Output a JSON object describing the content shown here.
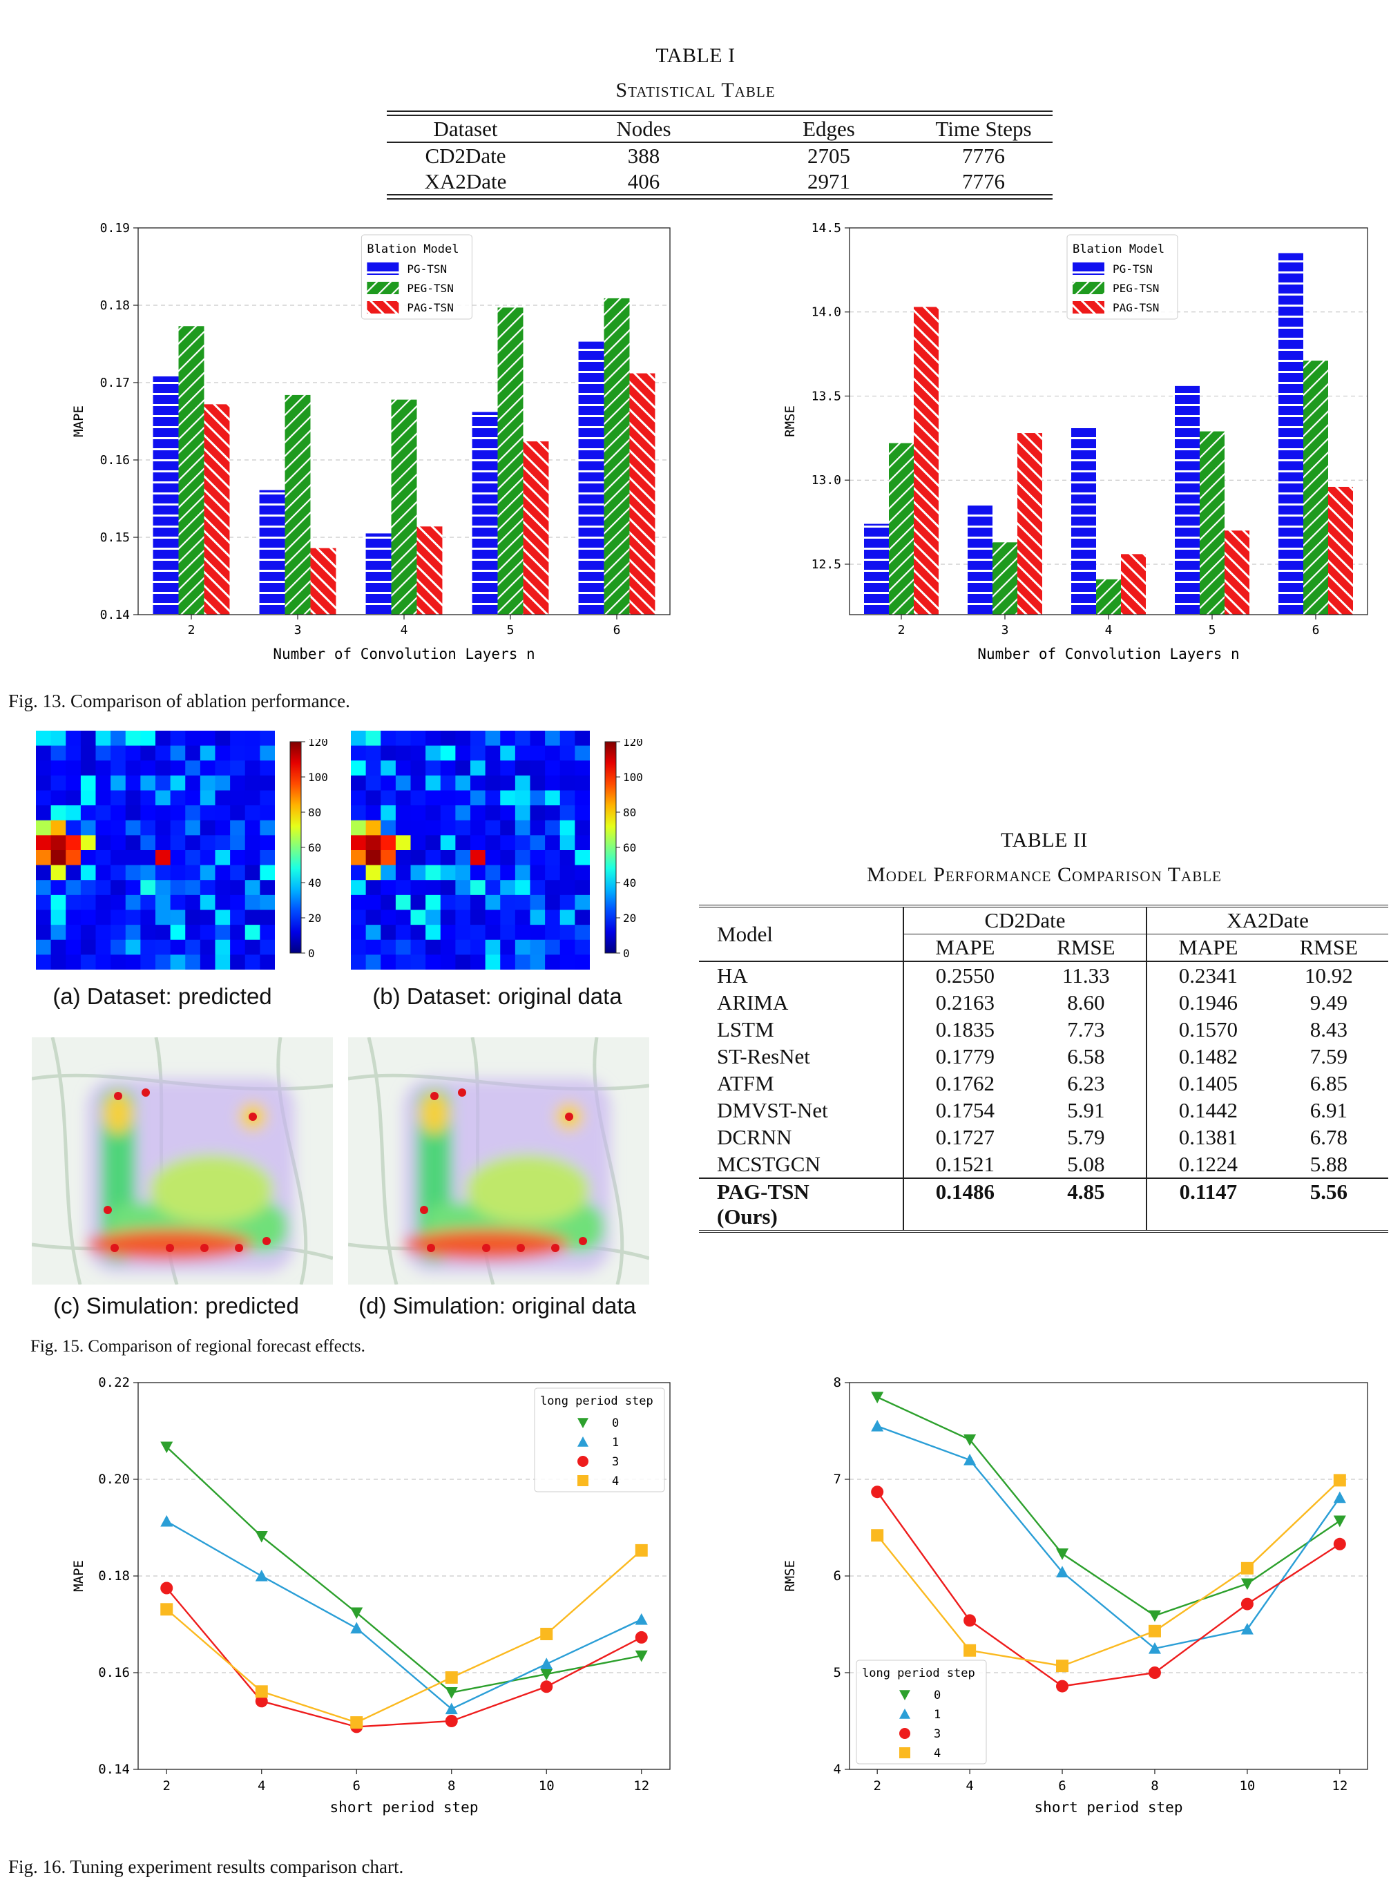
{
  "table1": {
    "title": "TABLE I",
    "subtitle": "Statistical Table",
    "headers": [
      "Dataset",
      "Nodes",
      "Edges",
      "Time Steps"
    ],
    "rows": [
      [
        "CD2Date",
        "388",
        "2705",
        "7776"
      ],
      [
        "XA2Date",
        "406",
        "2971",
        "7776"
      ]
    ]
  },
  "table2": {
    "title": "TABLE II",
    "subtitle": "Model Performance Comparison Table",
    "model_header": "Model",
    "group_headers": [
      "CD2Date",
      "XA2Date"
    ],
    "sub_headers": [
      "MAPE",
      "RMSE",
      "MAPE",
      "RMSE"
    ],
    "rows": [
      [
        "HA",
        "0.2550",
        "11.33",
        "0.2341",
        "10.92"
      ],
      [
        "ARIMA",
        "0.2163",
        "8.60",
        "0.1946",
        "9.49"
      ],
      [
        "LSTM",
        "0.1835",
        "7.73",
        "0.1570",
        "8.43"
      ],
      [
        "ST-ResNet",
        "0.1779",
        "6.58",
        "0.1482",
        "7.59"
      ],
      [
        "ATFM",
        "0.1762",
        "6.23",
        "0.1405",
        "6.85"
      ],
      [
        "DMVST-Net",
        "0.1754",
        "5.91",
        "0.1442",
        "6.91"
      ],
      [
        "DCRNN",
        "0.1727",
        "5.79",
        "0.1381",
        "6.78"
      ],
      [
        "MCSTGCN",
        "0.1521",
        "5.08",
        "0.1224",
        "5.88"
      ]
    ],
    "ours": [
      "PAG-TSN",
      "0.1486",
      "4.85",
      "0.1147",
      "5.56"
    ],
    "ours_suffix": "(Ours)"
  },
  "captions": {
    "fig13": "Fig. 13.   Comparison of ablation performance.",
    "fig15": "Fig. 15.   Comparison of regional forecast effects.",
    "fig16": "Fig. 16.   Tuning experiment results comparison chart.",
    "sub_a": "(a) Dataset: predicted",
    "sub_b": "(b) Dataset: original data",
    "sub_c": "(c) Simulation: predicted",
    "sub_d": "(d) Simulation: original data"
  },
  "colorbar_ticks": [
    "120",
    "100",
    "80",
    "60",
    "40",
    "20",
    "0"
  ],
  "colors": {
    "pg": "#1010f0",
    "peg": "#1e9a1e",
    "pag": "#ee1a1a",
    "s0": "#2ca02c",
    "s1": "#2a9ed6",
    "s3": "#ee1c1c",
    "s4": "#fbb91f"
  },
  "chart_data": [
    {
      "type": "bar",
      "categories": [
        "2",
        "3",
        "4",
        "5",
        "6"
      ],
      "series": [
        {
          "name": "PG-TSN",
          "values": [
            0.1708,
            0.1561,
            0.1505,
            0.1662,
            0.1753
          ]
        },
        {
          "name": "PEG-TSN",
          "values": [
            0.1773,
            0.1684,
            0.1678,
            0.1797,
            0.1809
          ]
        },
        {
          "name": "PAG-TSN",
          "values": [
            0.1672,
            0.1486,
            0.1514,
            0.1624,
            0.1712
          ]
        }
      ],
      "xlabel": "Number of Convolution Layers n",
      "ylabel": "MAPE",
      "ylim": [
        0.14,
        0.19
      ],
      "yticks": [
        "0.14",
        "0.15",
        "0.16",
        "0.17",
        "0.18",
        "0.19"
      ],
      "legend_title": "Blation Model",
      "legend_position": "top-center",
      "grid": "horizontal dashed"
    },
    {
      "type": "bar",
      "categories": [
        "2",
        "3",
        "4",
        "5",
        "6"
      ],
      "series": [
        {
          "name": "PG-TSN",
          "values": [
            12.74,
            12.86,
            13.32,
            13.56,
            14.35
          ]
        },
        {
          "name": "PEG-TSN",
          "values": [
            13.22,
            12.63,
            12.41,
            13.29,
            13.71
          ]
        },
        {
          "name": "PAG-TSN",
          "values": [
            14.03,
            13.28,
            12.56,
            12.7,
            12.96
          ]
        }
      ],
      "xlabel": "Number of Convolution Layers n",
      "ylabel": "RMSE",
      "ylim": [
        12.2,
        14.5
      ],
      "yticks": [
        "12.5",
        "13.0",
        "13.5",
        "14.0",
        "14.5"
      ],
      "legend_title": "Blation Model",
      "legend_position": "top-center",
      "grid": "horizontal dashed"
    },
    {
      "type": "line",
      "x": [
        2,
        4,
        6,
        8,
        10,
        12
      ],
      "series": [
        {
          "name": "0",
          "values": [
            0.2067,
            0.1882,
            0.1724,
            0.1559,
            0.1597,
            0.1635
          ]
        },
        {
          "name": "1",
          "values": [
            0.1913,
            0.18,
            0.1692,
            0.1525,
            0.1618,
            0.171
          ]
        },
        {
          "name": "3",
          "values": [
            0.1775,
            0.1541,
            0.1488,
            0.15,
            0.1571,
            0.1673
          ]
        },
        {
          "name": "4",
          "values": [
            0.1731,
            0.1561,
            0.1497,
            0.159,
            0.168,
            0.1853
          ]
        }
      ],
      "xlabel": "short period step",
      "ylabel": "MAPE",
      "ylim": [
        0.14,
        0.22
      ],
      "yticks": [
        "0.14",
        "0.16",
        "0.18",
        "0.20",
        "0.22"
      ],
      "xticks": [
        "2",
        "4",
        "6",
        "8",
        "10",
        "12"
      ],
      "legend_title": "long period step",
      "legend_position": "top-right",
      "grid": "horizontal dashed"
    },
    {
      "type": "line",
      "x": [
        2,
        4,
        6,
        8,
        10,
        12
      ],
      "series": [
        {
          "name": "0",
          "values": [
            7.85,
            7.41,
            6.23,
            5.59,
            5.92,
            6.57
          ]
        },
        {
          "name": "1",
          "values": [
            7.55,
            7.2,
            6.04,
            5.25,
            5.45,
            6.81
          ]
        },
        {
          "name": "3",
          "values": [
            6.87,
            5.54,
            4.86,
            5.0,
            5.71,
            6.33
          ]
        },
        {
          "name": "4",
          "values": [
            6.42,
            5.23,
            5.07,
            5.43,
            6.08,
            6.99
          ]
        }
      ],
      "xlabel": "short period step",
      "ylabel": "RMSE",
      "ylim": [
        4,
        8
      ],
      "yticks": [
        "4",
        "5",
        "6",
        "7",
        "8"
      ],
      "xticks": [
        "2",
        "4",
        "6",
        "8",
        "10",
        "12"
      ],
      "legend_title": "long period step",
      "legend_position": "bottom-left",
      "grid": "horizontal dashed"
    }
  ]
}
